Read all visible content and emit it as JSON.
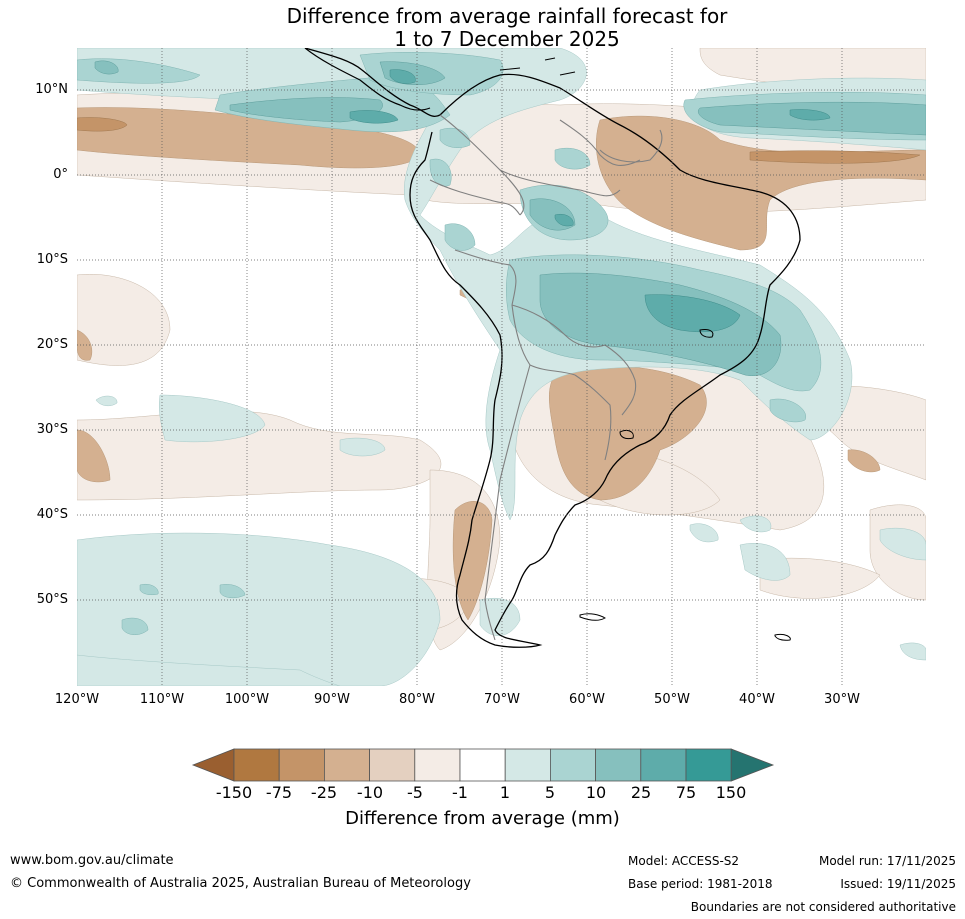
{
  "title": {
    "line1": "Difference from average rainfall forecast for",
    "line2": "1 to 7 December 2025"
  },
  "map": {
    "region": "South America",
    "lat_labels": [
      "10°N",
      "0°",
      "10°S",
      "20°S",
      "30°S",
      "40°S",
      "50°S"
    ],
    "lon_labels": [
      "120°W",
      "110°W",
      "100°W",
      "90°W",
      "80°W",
      "70°W",
      "60°W",
      "50°W",
      "40°W",
      "30°W"
    ]
  },
  "colorbar": {
    "title": "Difference from average (mm)",
    "tick_labels": [
      "-150",
      "-75",
      "-25",
      "-10",
      "-5",
      "-1",
      "1",
      "5",
      "10",
      "25",
      "75",
      "150"
    ],
    "colors": [
      "#9a5f30",
      "#b07840",
      "#c49468",
      "#d4b090",
      "#e4d0c0",
      "#f4ece6",
      "#ffffff",
      "#d4e8e6",
      "#aad4d2",
      "#86c0be",
      "#5eacaa",
      "#359a96",
      "#257470"
    ]
  },
  "footer": {
    "website": "www.bom.gov.au/climate",
    "copyright": "© Commonwealth of Australia 2025, Australian Bureau of Meteorology",
    "model": "Model: ACCESS-S2",
    "base_period": "Base period: 1981-2018",
    "model_run": "Model run: 17/11/2025",
    "issued": "Issued: 19/11/2025",
    "disclaimer": "Boundaries are not considered authoritative"
  }
}
